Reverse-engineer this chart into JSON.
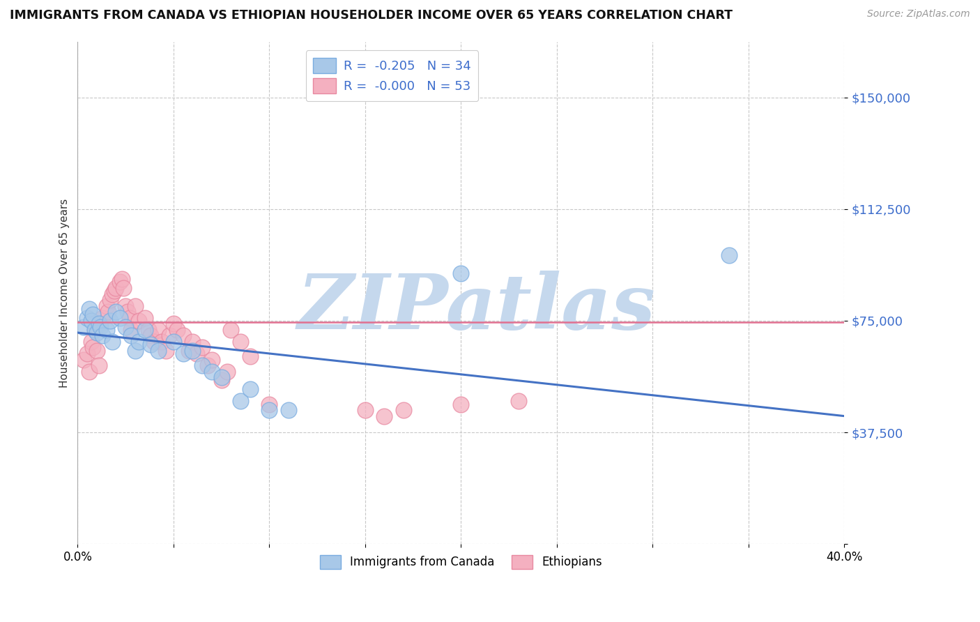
{
  "title": "IMMIGRANTS FROM CANADA VS ETHIOPIAN HOUSEHOLDER INCOME OVER 65 YEARS CORRELATION CHART",
  "source": "Source: ZipAtlas.com",
  "ylabel": "Householder Income Over 65 years",
  "xmin": 0.0,
  "xmax": 0.4,
  "ymin": 0,
  "ymax": 168750,
  "yticks": [
    0,
    37500,
    75000,
    112500,
    150000
  ],
  "ytick_labels": [
    "",
    "$37,500",
    "$75,000",
    "$112,500",
    "$150,000"
  ],
  "grid_color": "#c8c8c8",
  "background_color": "#ffffff",
  "watermark_text": "ZIPatlas",
  "watermark_color": "#c5d8ed",
  "canada_color": "#a8c8e8",
  "canada_edge": "#7aace0",
  "ethiopian_color": "#f4b0c0",
  "ethiopian_edge": "#e888a0",
  "canada_line_color": "#4472c4",
  "ethiopian_line_color": "#e07090",
  "canada_trend_y0": 71000,
  "canada_trend_y1": 43000,
  "ethiopian_trend_y": 74500,
  "canada_scatter": [
    [
      0.003,
      73000
    ],
    [
      0.005,
      76000
    ],
    [
      0.006,
      79000
    ],
    [
      0.007,
      75000
    ],
    [
      0.008,
      77000
    ],
    [
      0.009,
      72000
    ],
    [
      0.01,
      71000
    ],
    [
      0.011,
      74000
    ],
    [
      0.012,
      73000
    ],
    [
      0.013,
      70000
    ],
    [
      0.015,
      72000
    ],
    [
      0.017,
      75000
    ],
    [
      0.018,
      68000
    ],
    [
      0.02,
      78000
    ],
    [
      0.022,
      76000
    ],
    [
      0.025,
      73000
    ],
    [
      0.028,
      70000
    ],
    [
      0.03,
      65000
    ],
    [
      0.032,
      68000
    ],
    [
      0.035,
      72000
    ],
    [
      0.038,
      67000
    ],
    [
      0.042,
      65000
    ],
    [
      0.05,
      68000
    ],
    [
      0.055,
      64000
    ],
    [
      0.06,
      65000
    ],
    [
      0.065,
      60000
    ],
    [
      0.07,
      58000
    ],
    [
      0.075,
      56000
    ],
    [
      0.085,
      48000
    ],
    [
      0.09,
      52000
    ],
    [
      0.1,
      45000
    ],
    [
      0.11,
      45000
    ],
    [
      0.2,
      91000
    ],
    [
      0.34,
      97000
    ]
  ],
  "ethiopian_scatter": [
    [
      0.003,
      62000
    ],
    [
      0.005,
      64000
    ],
    [
      0.006,
      58000
    ],
    [
      0.007,
      68000
    ],
    [
      0.008,
      66000
    ],
    [
      0.009,
      72000
    ],
    [
      0.01,
      65000
    ],
    [
      0.011,
      60000
    ],
    [
      0.012,
      74000
    ],
    [
      0.013,
      76000
    ],
    [
      0.015,
      80000
    ],
    [
      0.016,
      78000
    ],
    [
      0.017,
      82000
    ],
    [
      0.018,
      84000
    ],
    [
      0.019,
      85000
    ],
    [
      0.02,
      86000
    ],
    [
      0.022,
      88000
    ],
    [
      0.023,
      89000
    ],
    [
      0.024,
      86000
    ],
    [
      0.025,
      80000
    ],
    [
      0.026,
      78000
    ],
    [
      0.027,
      76000
    ],
    [
      0.028,
      72000
    ],
    [
      0.03,
      80000
    ],
    [
      0.032,
      75000
    ],
    [
      0.035,
      76000
    ],
    [
      0.037,
      72000
    ],
    [
      0.038,
      70000
    ],
    [
      0.04,
      68000
    ],
    [
      0.042,
      72000
    ],
    [
      0.044,
      68000
    ],
    [
      0.046,
      65000
    ],
    [
      0.048,
      70000
    ],
    [
      0.05,
      74000
    ],
    [
      0.052,
      72000
    ],
    [
      0.055,
      70000
    ],
    [
      0.058,
      65000
    ],
    [
      0.06,
      68000
    ],
    [
      0.062,
      64000
    ],
    [
      0.065,
      66000
    ],
    [
      0.068,
      60000
    ],
    [
      0.07,
      62000
    ],
    [
      0.075,
      55000
    ],
    [
      0.078,
      58000
    ],
    [
      0.08,
      72000
    ],
    [
      0.085,
      68000
    ],
    [
      0.09,
      63000
    ],
    [
      0.1,
      47000
    ],
    [
      0.15,
      45000
    ],
    [
      0.16,
      43000
    ],
    [
      0.17,
      45000
    ],
    [
      0.2,
      47000
    ],
    [
      0.23,
      48000
    ]
  ],
  "legend1_label_canada": "R =  -0.205   N = 34",
  "legend1_label_ethiopian": "R =  -0.000   N = 53",
  "legend2_label_canada": "Immigrants from Canada",
  "legend2_label_ethiopian": "Ethiopians"
}
